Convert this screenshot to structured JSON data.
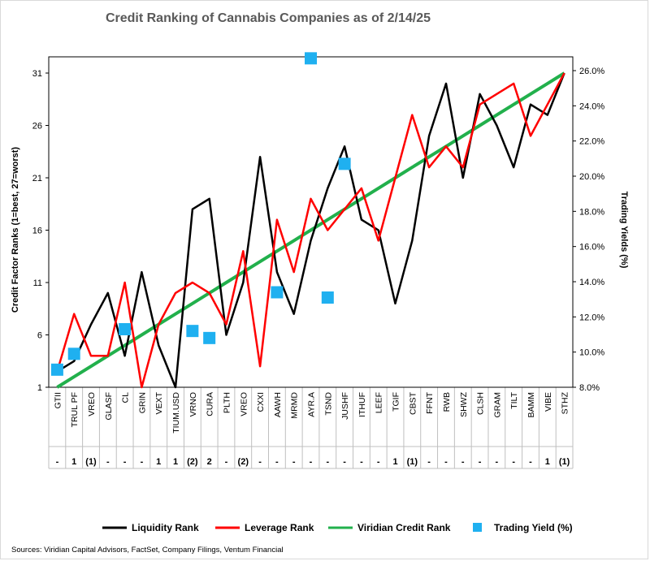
{
  "chart_data": {
    "type": "line",
    "title": "Credit Ranking of Cannabis Companies as of 2/14/25",
    "ylabel_left": "Credit Factor Ranks (1=best, 27=worst)",
    "ylabel_right": "Trading Yields (%)",
    "ylim_left": [
      1,
      31
    ],
    "yticks_left": [
      1,
      6,
      11,
      16,
      21,
      26,
      31
    ],
    "ylim_right": [
      8.0,
      26.0
    ],
    "yticks_right": [
      "8.0%",
      "10.0%",
      "12.0%",
      "14.0%",
      "16.0%",
      "18.0%",
      "20.0%",
      "22.0%",
      "24.0%",
      "26.0%"
    ],
    "categories": [
      "GTII",
      "TRUL PF",
      "VREO",
      "GLASF",
      "CL",
      "GRIN",
      "VEXT",
      "TIUM.USD",
      "VRNO",
      "CURA",
      "PLTH",
      "VREO",
      "CXXI",
      "AAWH",
      "MRMD",
      "AYR.A",
      "TSND",
      "JUSHF",
      "ITHUF",
      "LEEF",
      "TGIF",
      "CBST",
      "FFNT",
      "RWB",
      "SHWZ",
      "CLSH",
      "GRAM",
      "TILT",
      "BAMM",
      "VIBE",
      "STHZ"
    ],
    "second_row": [
      "-",
      "1",
      "(1)",
      "-",
      "-",
      "-",
      "1",
      "1",
      "(2)",
      "2",
      "-",
      "(2)",
      "-",
      "-",
      "-",
      "-",
      "-",
      "-",
      "-",
      "-",
      "1",
      "(1)",
      "-",
      "-",
      "-",
      "-",
      "-",
      "-",
      "-",
      "1",
      "(1)"
    ],
    "series": [
      {
        "name": "Liquidity Rank",
        "color": "#000000",
        "axis": "left",
        "values": [
          2.5,
          3.5,
          7,
          10,
          4,
          12,
          5,
          1,
          18,
          19,
          6,
          11,
          23,
          12,
          8,
          15,
          20,
          24,
          17,
          16,
          9,
          15,
          25,
          30,
          21,
          29,
          26,
          22,
          28,
          27,
          31
        ]
      },
      {
        "name": "Leverage Rank",
        "color": "#ff0000",
        "axis": "left",
        "values": [
          2.5,
          8,
          4,
          4,
          11,
          1,
          7,
          10,
          11,
          10,
          7,
          14,
          3,
          17,
          12,
          19,
          16,
          18,
          20,
          15,
          21,
          27,
          22,
          24,
          22,
          28,
          29,
          30,
          25,
          28,
          31
        ]
      },
      {
        "name": "Viridian Credit Rank",
        "color": "#22b04c",
        "axis": "left",
        "values": [
          1,
          2,
          3,
          4,
          5,
          6,
          7,
          8,
          9,
          10,
          11,
          12,
          13,
          14,
          15,
          16,
          17,
          18,
          19,
          20,
          21,
          22,
          23,
          24,
          25,
          26,
          27,
          28,
          29,
          30,
          31
        ]
      },
      {
        "name": "Trading Yield (%)",
        "color": "#1fb0f0",
        "axis": "right",
        "points": [
          [
            "GTII",
            9.0
          ],
          [
            "TRUL PF",
            9.9
          ],
          [
            "CL",
            11.3
          ],
          [
            "VRNO",
            11.2
          ],
          [
            "CURA",
            10.8
          ],
          [
            "AAWH",
            13.4
          ],
          [
            "AYR.A",
            26.7
          ],
          [
            "TSND",
            13.1
          ],
          [
            "JUSHF",
            20.7
          ]
        ]
      }
    ],
    "source": "Sources: Viridian Capital Advisors, FactSet, Company Filings, Ventum Financial"
  }
}
